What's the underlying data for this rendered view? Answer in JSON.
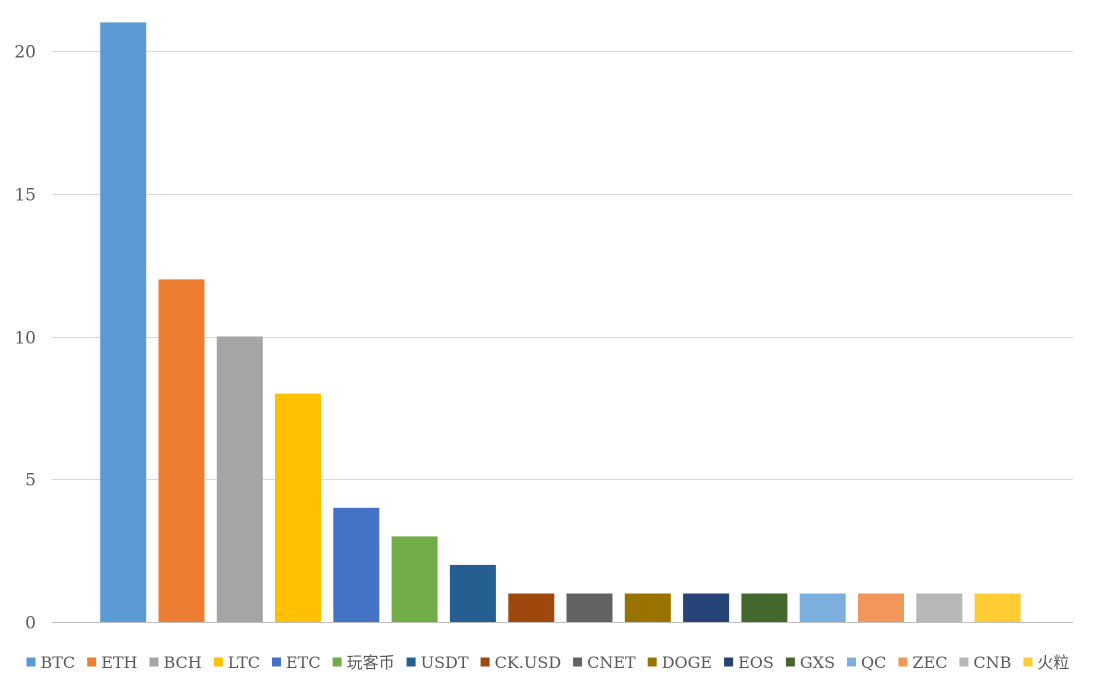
{
  "chart_data": {
    "type": "bar",
    "title": "",
    "xlabel": "",
    "ylabel": "",
    "ylim": [
      0,
      20
    ],
    "yticks": [
      0,
      5,
      10,
      15,
      20
    ],
    "grid": true,
    "legend_position": "bottom",
    "categories": [
      "BTC",
      "ETH",
      "BCH",
      "LTC",
      "ETC",
      "玩客币",
      "USDT",
      "CK.USD",
      "CNET",
      "DOGE",
      "EOS",
      "GXS",
      "QC",
      "ZEC",
      "CNB",
      "火粒"
    ],
    "values": [
      21,
      12,
      10,
      8,
      4,
      3,
      2,
      1,
      1,
      1,
      1,
      1,
      1,
      1,
      1,
      1
    ],
    "colors": [
      "#5b9bd5",
      "#ed7d31",
      "#a5a5a5",
      "#ffc000",
      "#4472c4",
      "#70ad47",
      "#255e91",
      "#9e480e",
      "#636363",
      "#997300",
      "#264478",
      "#43682b",
      "#7cafdd",
      "#f1975a",
      "#b7b7b7",
      "#ffcd33"
    ]
  }
}
